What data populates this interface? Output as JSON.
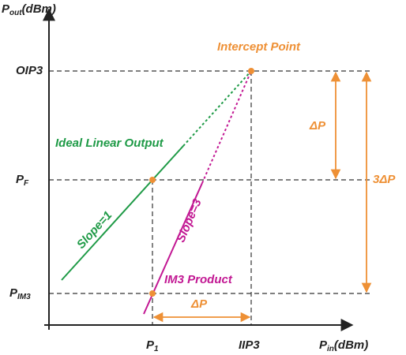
{
  "axes": {
    "y_label": {
      "symbol": "P",
      "sub": "out",
      "unit": "(dBm)"
    },
    "x_label": {
      "symbol": "P",
      "sub": "in",
      "unit": "(dBm)"
    }
  },
  "levels": {
    "oip3": "OIP3",
    "pf": {
      "symbol": "P",
      "sub": "F"
    },
    "pim3": {
      "symbol": "P",
      "sub": "IM3"
    },
    "p1": {
      "symbol": "P",
      "sub": "1"
    },
    "iip3": "IIP3"
  },
  "annotations": {
    "intercept_point": "Intercept Point",
    "ideal_linear_output": "Ideal Linear Output",
    "slope1": "Slope=1",
    "slope3": "Slope=3",
    "im3_product": "IM3 Product",
    "delta_p_vertical": "ΔP",
    "three_delta_p": "3ΔP",
    "delta_p_horizontal": "ΔP"
  }
}
